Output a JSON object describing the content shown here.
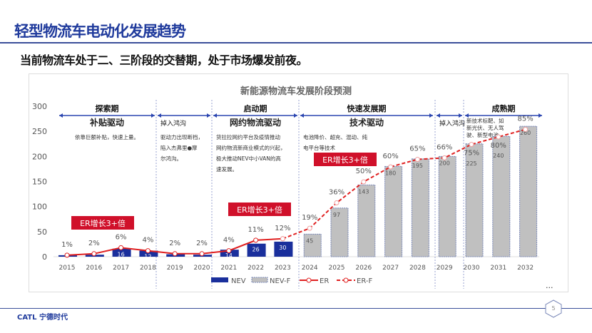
{
  "header": {
    "title": "轻型物流车电动化发展趋势",
    "subtitle": "当前物流车处于二、三阶段的交替期，处于市场爆发前夜。"
  },
  "footer": {
    "logo": "CATL 宁德时代",
    "page_number": "5"
  },
  "chart_data": {
    "type": "bar",
    "title": "新能源物流车发展阶段预测",
    "categories": [
      "2015",
      "2016",
      "2017",
      "2018",
      "2019",
      "2020",
      "2021",
      "2022",
      "2023",
      "2024",
      "2025",
      "2026",
      "2027",
      "2028",
      "2029",
      "2030",
      "2031",
      "2032"
    ],
    "ylim": [
      0,
      300
    ],
    "yticks": [
      0,
      50,
      100,
      150,
      200,
      250,
      300
    ],
    "series": [
      {
        "name": "NEV",
        "type": "bar",
        "color": "#1a2f9c",
        "values": [
          3,
          4,
          16,
          12,
          5,
          4,
          14,
          26,
          30,
          null,
          null,
          null,
          null,
          null,
          null,
          null,
          null,
          null
        ],
        "labels": [
          "",
          "",
          "16",
          "12",
          "",
          "",
          "14",
          "26",
          "30",
          "",
          "",
          "",
          "",
          "",
          "",
          "",
          "",
          ""
        ]
      },
      {
        "name": "NEV-F",
        "type": "bar",
        "color": "#c0c0c0",
        "values": [
          null,
          null,
          null,
          null,
          null,
          null,
          null,
          null,
          null,
          45,
          97,
          143,
          180,
          195,
          200,
          225,
          240,
          260
        ]
      },
      {
        "name": "ER",
        "type": "line",
        "color": "#e02020",
        "unit": "%",
        "values": [
          1,
          2,
          6,
          4,
          2,
          2,
          4,
          11,
          12,
          null,
          null,
          null,
          null,
          null,
          null,
          null,
          null,
          null
        ]
      },
      {
        "name": "ER-F",
        "type": "line",
        "style": "dashed",
        "color": "#e02020",
        "unit": "%",
        "values": [
          null,
          null,
          null,
          null,
          null,
          null,
          null,
          null,
          12,
          19,
          36,
          50,
          60,
          65,
          66,
          75,
          80,
          85
        ]
      }
    ],
    "stages": [
      {
        "name": "探索期",
        "driver": "补贴驱动",
        "desc": [
          "依靠巨额补贴，快速上量。"
        ]
      },
      {
        "name": "",
        "driver": "掉入鸿沟",
        "desc": [
          "驱动力出现断档，",
          "陷入杰弗里●摩",
          "尔鸿沟。"
        ]
      },
      {
        "name": "启动期",
        "driver": "网约物流驱动",
        "desc": [
          "货拉拉网约平台及疫情推动",
          "网约物流新商业模式的兴起，",
          "极大推动NEV中小VAN的高",
          "速发展。"
        ]
      },
      {
        "name": "快速发展期",
        "driver": "技术驱动",
        "desc": [
          "电池降价、超充、混动、纯",
          "电平台等技术"
        ]
      },
      {
        "name": "",
        "driver": "掉入鸿沟",
        "desc": []
      },
      {
        "name": "成熟期",
        "driver": "",
        "desc": [
          "新技术标靶、如",
          "新光伏、无人驾",
          "驶、新型电池"
        ]
      }
    ],
    "annotations": [
      "ER增长3+倍",
      "ER增长3+倍",
      "ER增长3+倍"
    ],
    "legend_position": "bottom",
    "more": "..."
  }
}
